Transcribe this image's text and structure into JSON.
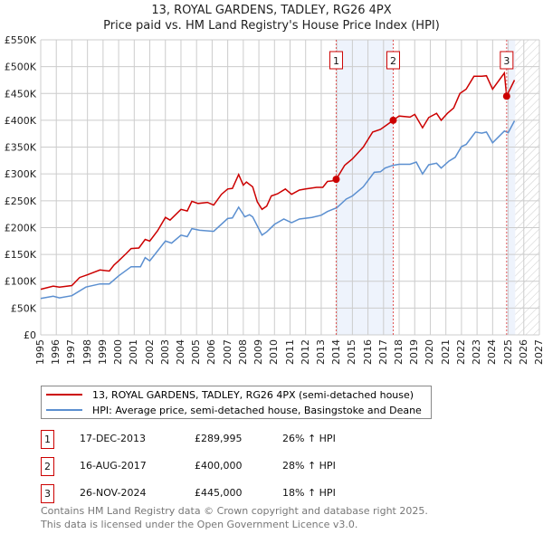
{
  "title": "13, ROYAL GARDENS, TADLEY, RG26 4PX",
  "subtitle": "Price paid vs. HM Land Registry's House Price Index (HPI)",
  "colors": {
    "property": "#cc0000",
    "hpi": "#5b8fd0",
    "shade": "#eef3fc"
  },
  "legend": [
    {
      "label": "13, ROYAL GARDENS, TADLEY, RG26 4PX (semi-detached house)"
    },
    {
      "label": "HPI: Average price, semi-detached house, Basingstoke and Deane"
    }
  ],
  "sales": [
    {
      "num": "1",
      "date": "17-DEC-2013",
      "price": "£289,995",
      "pct": "26% ↑ HPI",
      "year": 2013.96,
      "value": 289995
    },
    {
      "num": "2",
      "date": "16-AUG-2017",
      "price": "£400,000",
      "pct": "28% ↑ HPI",
      "year": 2017.62,
      "value": 400000
    },
    {
      "num": "3",
      "date": "26-NOV-2024",
      "price": "£445,000",
      "pct": "18% ↑ HPI",
      "year": 2024.9,
      "value": 445000
    }
  ],
  "footer": [
    "Contains HM Land Registry data © Crown copyright and database right 2025.",
    "This data is licensed under the Open Government Licence v3.0."
  ],
  "chart_data": {
    "type": "line",
    "title": "13, ROYAL GARDENS, TADLEY, RG26 4PX",
    "subtitle": "Price paid vs. HM Land Registry's House Price Index (HPI)",
    "xlim": [
      1995,
      2027
    ],
    "ylim": [
      0,
      550000
    ],
    "xticks": [
      "1995",
      "1996",
      "1997",
      "1998",
      "1999",
      "2000",
      "2001",
      "2002",
      "2003",
      "2004",
      "2005",
      "2006",
      "2007",
      "2008",
      "2009",
      "2010",
      "2011",
      "2012",
      "2013",
      "2014",
      "2015",
      "2016",
      "2017",
      "2018",
      "2019",
      "2020",
      "2021",
      "2022",
      "2023",
      "2024",
      "2025",
      "2026",
      "2027"
    ],
    "yticks": [
      {
        "v": 0,
        "label": "£0"
      },
      {
        "v": 50000,
        "label": "£50K"
      },
      {
        "v": 100000,
        "label": "£100K"
      },
      {
        "v": 150000,
        "label": "£150K"
      },
      {
        "v": 200000,
        "label": "£200K"
      },
      {
        "v": 250000,
        "label": "£250K"
      },
      {
        "v": 300000,
        "label": "£300K"
      },
      {
        "v": 350000,
        "label": "£350K"
      },
      {
        "v": 400000,
        "label": "£400K"
      },
      {
        "v": 450000,
        "label": "£450K"
      },
      {
        "v": 500000,
        "label": "£500K"
      },
      {
        "v": 550000,
        "label": "£550K"
      }
    ],
    "grid": true,
    "shaded_ranges": [
      [
        2013.96,
        2017.62
      ],
      [
        2024.9,
        2025.45
      ]
    ],
    "hatched_range": [
      2025.45,
      2027
    ],
    "series": [
      {
        "name": "13, ROYAL GARDENS, TADLEY, RG26 4PX (semi-detached house)",
        "points": [
          [
            1995.0,
            85
          ],
          [
            1995.8,
            91
          ],
          [
            1996.2,
            89
          ],
          [
            1997.0,
            92
          ],
          [
            1997.5,
            107
          ],
          [
            1998.0,
            112
          ],
          [
            1998.8,
            121
          ],
          [
            1999.4,
            119
          ],
          [
            1999.7,
            130
          ],
          [
            2000.0,
            138
          ],
          [
            2000.5,
            152
          ],
          [
            2000.8,
            161
          ],
          [
            2001.3,
            162
          ],
          [
            2001.7,
            178
          ],
          [
            2002.0,
            175
          ],
          [
            2002.5,
            194
          ],
          [
            2003.0,
            219
          ],
          [
            2003.3,
            214
          ],
          [
            2004.0,
            234
          ],
          [
            2004.4,
            231
          ],
          [
            2004.7,
            249
          ],
          [
            2005.1,
            245
          ],
          [
            2005.7,
            247
          ],
          [
            2006.1,
            242
          ],
          [
            2006.6,
            262
          ],
          [
            2007.0,
            272
          ],
          [
            2007.3,
            273
          ],
          [
            2007.7,
            299
          ],
          [
            2008.0,
            279
          ],
          [
            2008.2,
            285
          ],
          [
            2008.6,
            276
          ],
          [
            2008.9,
            248
          ],
          [
            2009.2,
            234
          ],
          [
            2009.5,
            240
          ],
          [
            2009.8,
            259
          ],
          [
            2010.2,
            263
          ],
          [
            2010.7,
            272
          ],
          [
            2011.1,
            262
          ],
          [
            2011.6,
            270
          ],
          [
            2012.0,
            272
          ],
          [
            2012.7,
            275
          ],
          [
            2013.1,
            275
          ],
          [
            2013.4,
            286
          ],
          [
            2013.7,
            287
          ],
          [
            2013.96,
            290
          ],
          [
            2014.5,
            316
          ],
          [
            2015.0,
            328
          ],
          [
            2015.7,
            350
          ],
          [
            2016.3,
            378
          ],
          [
            2016.8,
            383
          ],
          [
            2017.1,
            389
          ],
          [
            2017.62,
            400
          ],
          [
            2018.0,
            408
          ],
          [
            2018.7,
            406
          ],
          [
            2019.0,
            411
          ],
          [
            2019.5,
            386
          ],
          [
            2019.9,
            405
          ],
          [
            2020.4,
            413
          ],
          [
            2020.7,
            400
          ],
          [
            2021.1,
            413
          ],
          [
            2021.5,
            423
          ],
          [
            2021.9,
            450
          ],
          [
            2022.3,
            458
          ],
          [
            2022.8,
            482
          ],
          [
            2023.3,
            482
          ],
          [
            2023.6,
            483
          ],
          [
            2024.0,
            458
          ],
          [
            2024.75,
            488
          ],
          [
            2024.9,
            445
          ],
          [
            2025.4,
            475
          ]
        ]
      },
      {
        "name": "HPI: Average price, semi-detached house, Basingstoke and Deane",
        "points": [
          [
            1995.0,
            68
          ],
          [
            1995.8,
            72
          ],
          [
            1996.2,
            69
          ],
          [
            1997.0,
            73
          ],
          [
            1997.9,
            89
          ],
          [
            1998.8,
            95
          ],
          [
            1999.4,
            95
          ],
          [
            2000.0,
            110
          ],
          [
            2000.8,
            127
          ],
          [
            2001.4,
            127
          ],
          [
            2001.7,
            144
          ],
          [
            2002.0,
            138
          ],
          [
            2003.0,
            175
          ],
          [
            2003.4,
            171
          ],
          [
            2004.0,
            186
          ],
          [
            2004.4,
            183
          ],
          [
            2004.7,
            198
          ],
          [
            2005.2,
            195
          ],
          [
            2006.1,
            193
          ],
          [
            2007.0,
            217
          ],
          [
            2007.3,
            218
          ],
          [
            2007.7,
            238
          ],
          [
            2008.1,
            220
          ],
          [
            2008.4,
            224
          ],
          [
            2008.6,
            220
          ],
          [
            2009.2,
            186
          ],
          [
            2009.5,
            192
          ],
          [
            2010.0,
            206
          ],
          [
            2010.6,
            216
          ],
          [
            2011.1,
            209
          ],
          [
            2011.6,
            216
          ],
          [
            2012.4,
            219
          ],
          [
            2013.0,
            223
          ],
          [
            2013.4,
            230
          ],
          [
            2014.0,
            237
          ],
          [
            2014.6,
            253
          ],
          [
            2015.0,
            259
          ],
          [
            2015.7,
            276
          ],
          [
            2016.4,
            303
          ],
          [
            2016.8,
            304
          ],
          [
            2017.1,
            311
          ],
          [
            2017.6,
            316
          ],
          [
            2018.0,
            318
          ],
          [
            2018.7,
            318
          ],
          [
            2019.1,
            322
          ],
          [
            2019.5,
            300
          ],
          [
            2019.9,
            317
          ],
          [
            2020.4,
            320
          ],
          [
            2020.7,
            311
          ],
          [
            2021.2,
            324
          ],
          [
            2021.6,
            331
          ],
          [
            2022.0,
            351
          ],
          [
            2022.3,
            355
          ],
          [
            2022.9,
            378
          ],
          [
            2023.3,
            376
          ],
          [
            2023.6,
            378
          ],
          [
            2024.0,
            358
          ],
          [
            2024.75,
            380
          ],
          [
            2025.0,
            377
          ],
          [
            2025.4,
            399
          ]
        ]
      }
    ],
    "value_unit_note": "series point values in £K"
  }
}
